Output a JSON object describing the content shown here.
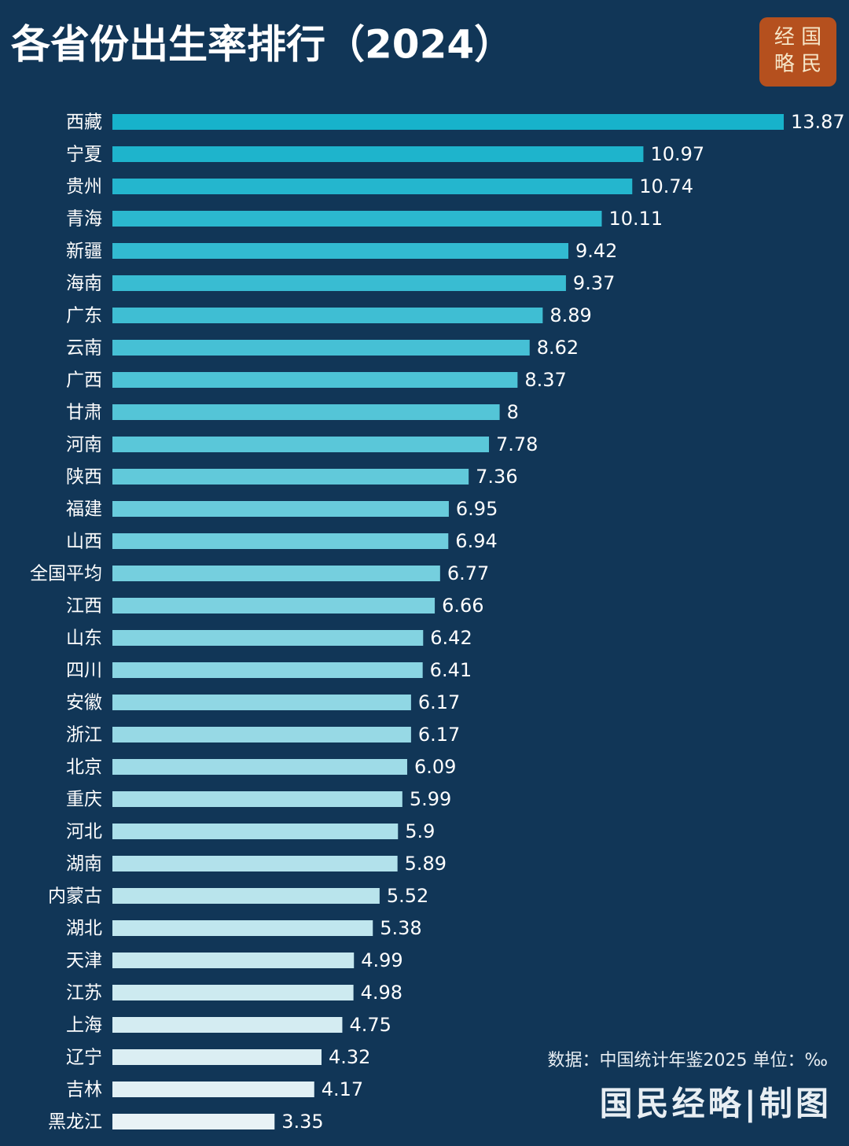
{
  "chart_data": {
    "type": "hbar",
    "title": "各省份出生率排行（2024）",
    "logo": [
      "经 国",
      "略 民"
    ],
    "source": "数据：中国统计年鉴2025 单位：‰",
    "credit": "国民经略|制图",
    "categories": [
      "西藏",
      "宁夏",
      "贵州",
      "青海",
      "新疆",
      "海南",
      "广东",
      "云南",
      "广西",
      "甘肃",
      "河南",
      "陕西",
      "福建",
      "山西",
      "全国平均",
      "江西",
      "山东",
      "四川",
      "安徽",
      "浙江",
      "北京",
      "重庆",
      "河北",
      "湖南",
      "内蒙古",
      "湖北",
      "天津",
      "江苏",
      "上海",
      "辽宁",
      "吉林",
      "黑龙江"
    ],
    "values": [
      13.87,
      10.97,
      10.74,
      10.11,
      9.42,
      9.37,
      8.89,
      8.62,
      8.37,
      8,
      7.78,
      7.36,
      6.95,
      6.94,
      6.77,
      6.66,
      6.42,
      6.41,
      6.17,
      6.17,
      6.09,
      5.99,
      5.9,
      5.89,
      5.52,
      5.38,
      4.99,
      4.98,
      4.75,
      4.32,
      4.17,
      3.35
    ],
    "xlim": [
      0,
      14
    ],
    "gradient": [
      "#17b2cb",
      "#e8f2f6"
    ]
  }
}
